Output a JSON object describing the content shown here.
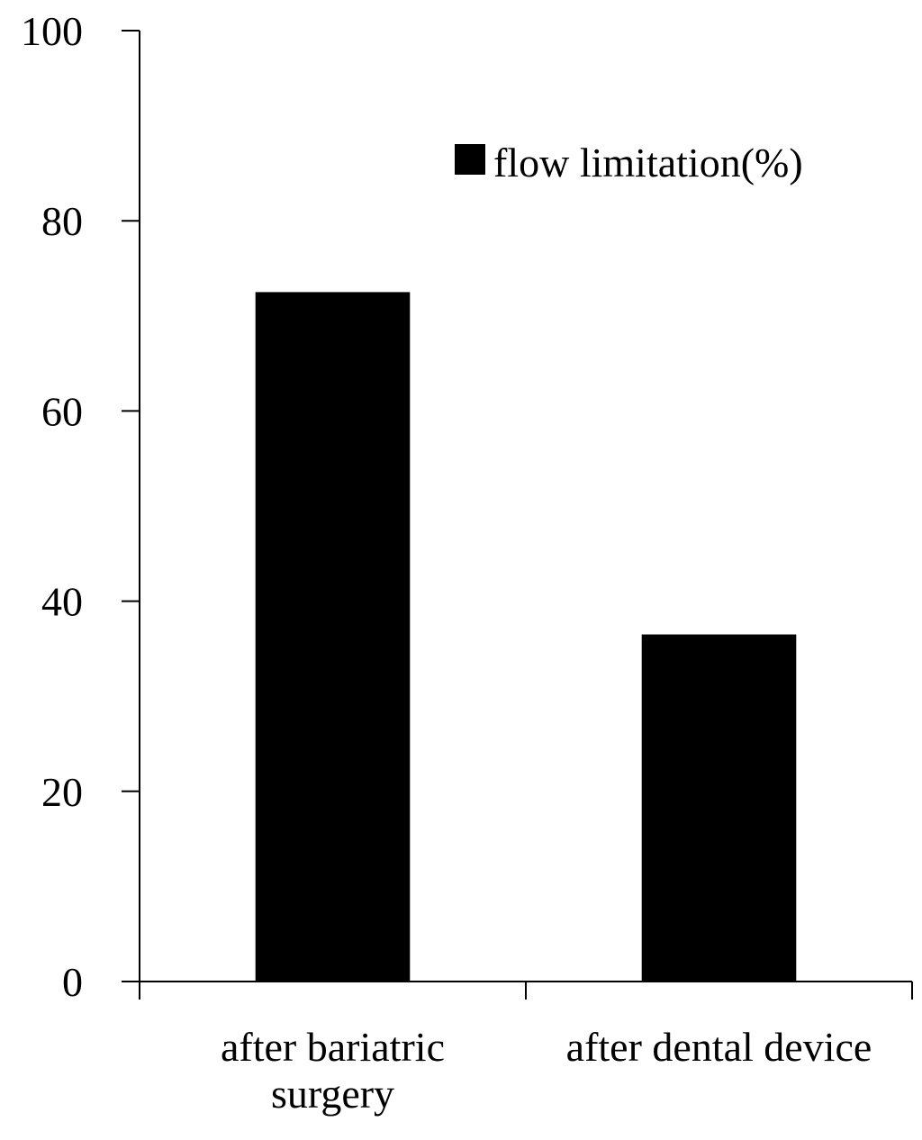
{
  "chart_data": {
    "type": "bar",
    "categories": [
      [
        "after bariatric",
        "surgery"
      ],
      [
        "after dental device"
      ]
    ],
    "series": [
      {
        "name": "flow limitation(%)",
        "values": [
          72.5,
          36.5
        ],
        "color": "#000000"
      }
    ],
    "ylim": [
      0,
      100
    ],
    "yticks": [
      0,
      20,
      40,
      60,
      80,
      100
    ],
    "grid": false,
    "legend": "top-right",
    "title": "",
    "xlabel": "",
    "ylabel": ""
  }
}
